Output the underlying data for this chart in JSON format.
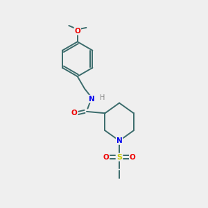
{
  "background_color": "#efefef",
  "bond_color": "#3a6b6b",
  "atom_colors": {
    "N": "#0000ee",
    "O": "#ee0000",
    "S": "#cccc00",
    "C": "#3a6b6b",
    "H": "#808080"
  },
  "figsize": [
    3.0,
    3.0
  ],
  "dpi": 100
}
